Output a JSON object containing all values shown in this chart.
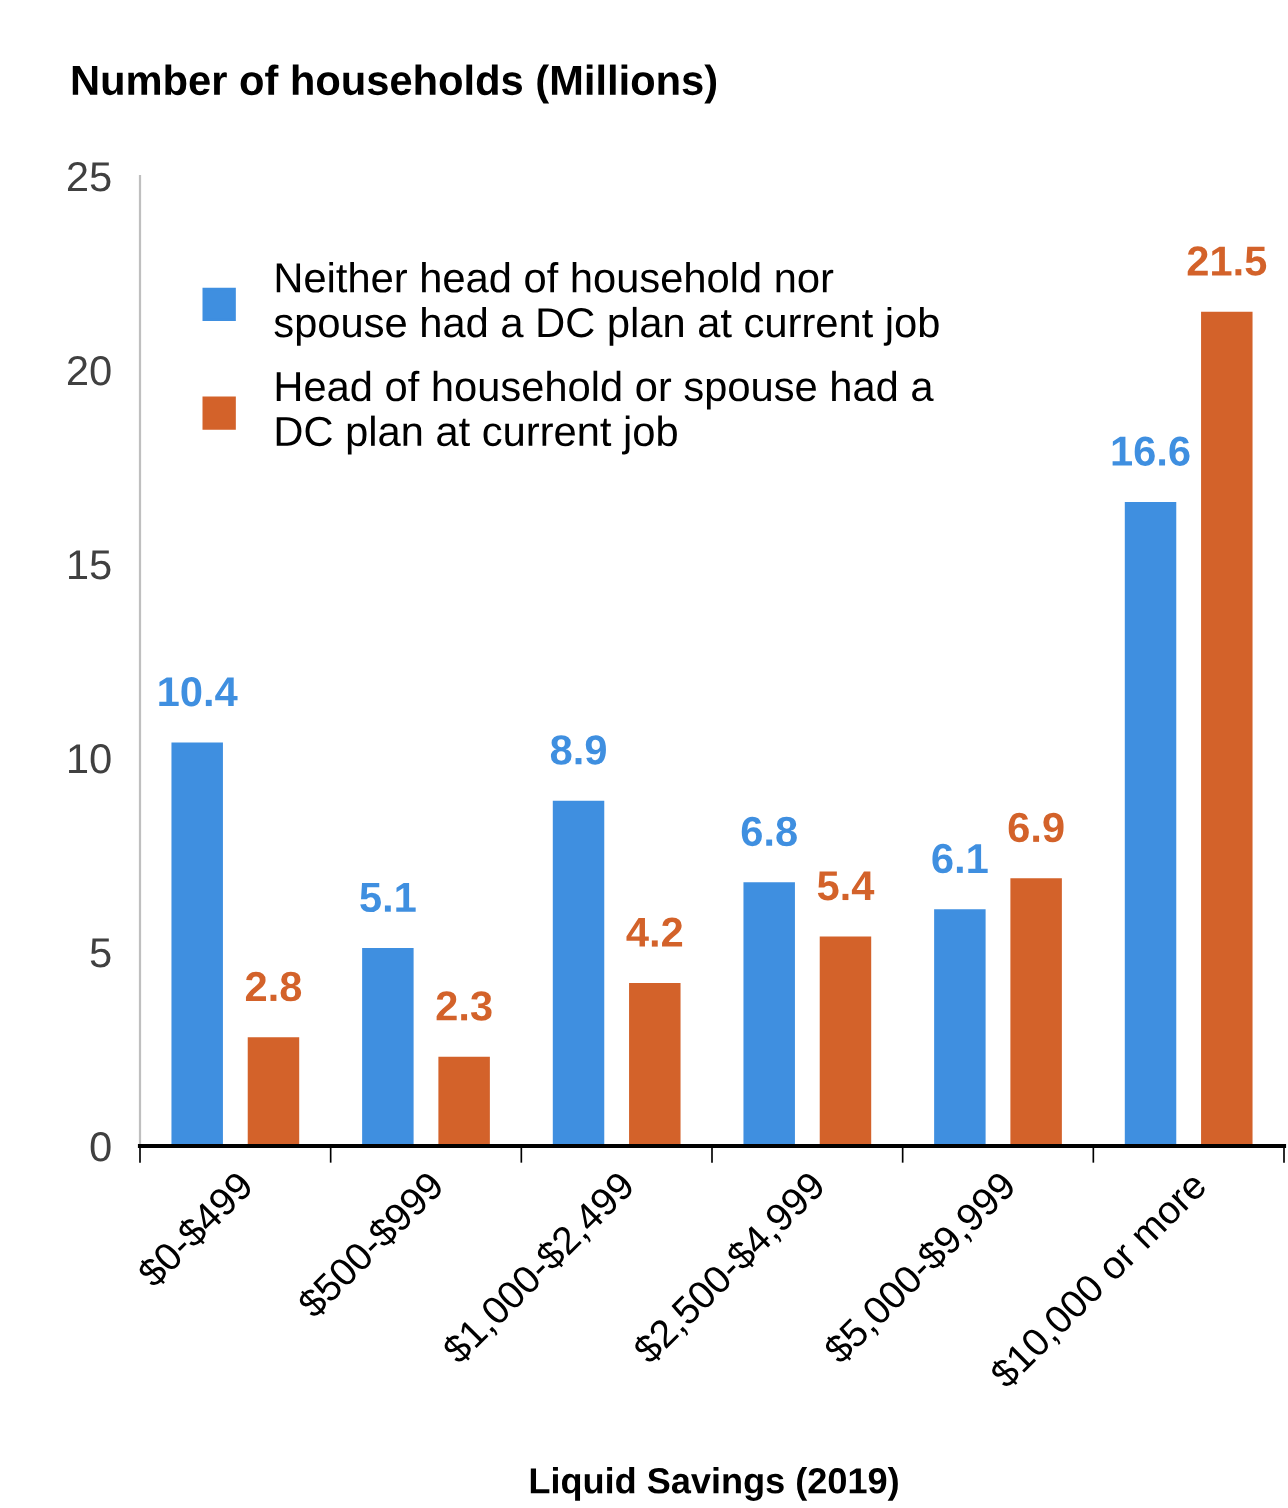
{
  "chart_data": {
    "type": "bar",
    "ylabel": "Number of households (Millions)",
    "xlabel": "Liquid Savings (2019)",
    "categories": [
      "$0-$499",
      "$500-$999",
      "$1,000-$2,499",
      "$2,500-$4,999",
      "$5,000-$9,999",
      "$10,000 or more"
    ],
    "series": [
      {
        "name": "Neither head of household nor\nspouse had a DC plan at current job",
        "color": "#3f8fe0",
        "values": [
          10.4,
          5.1,
          8.9,
          6.8,
          6.1,
          16.6
        ]
      },
      {
        "name": "Head of household or spouse had a\nDC plan at current job",
        "color": "#d3622a",
        "values": [
          2.8,
          2.3,
          4.2,
          5.4,
          6.9,
          21.5
        ]
      }
    ],
    "ylim": [
      0,
      25
    ],
    "yticks": [
      0,
      5,
      10,
      15,
      20,
      25
    ],
    "data_labels": true,
    "legend": "top left",
    "grid": false
  }
}
